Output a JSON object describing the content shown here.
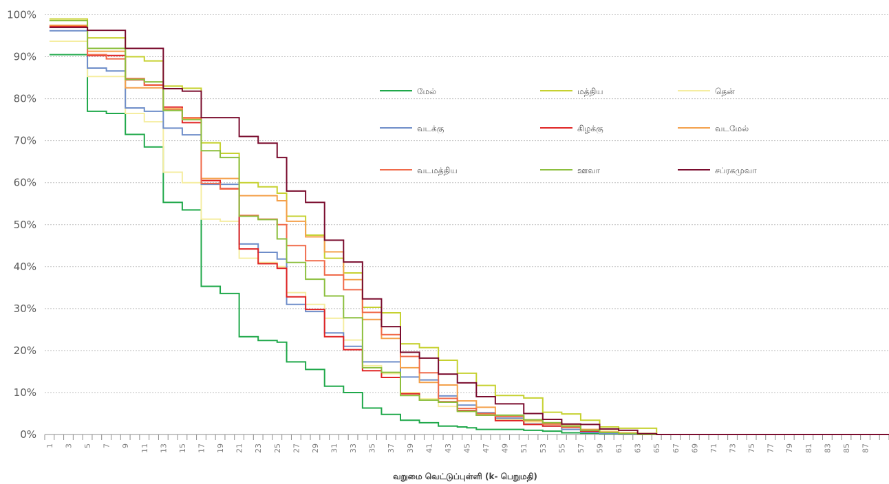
{
  "chart_data": {
    "type": "line",
    "step": true,
    "xlabel": "வறுமை வெட்டுப்புள்ளி (k- பெறுமதி)",
    "ylabel": "",
    "ylim": [
      0,
      100
    ],
    "yticks": [
      "0%",
      "10%",
      "20%",
      "30%",
      "40%",
      "50%",
      "60%",
      "70%",
      "80%",
      "90%",
      "100%"
    ],
    "grid": true,
    "legend": "upper-right",
    "x": [
      1,
      2,
      3,
      4,
      5,
      6,
      7,
      8,
      9,
      10,
      11,
      12,
      13,
      14,
      15,
      16,
      17,
      18,
      19,
      20,
      21,
      22,
      23,
      24,
      25,
      26,
      27,
      28,
      29,
      30,
      31,
      32,
      33,
      34,
      35,
      36,
      37,
      38,
      39,
      40,
      41,
      42,
      43,
      44,
      45,
      46,
      47,
      48,
      49,
      50,
      51,
      52,
      53,
      54,
      55,
      56,
      57,
      58,
      59,
      60,
      61,
      62,
      63,
      64,
      65,
      66,
      67,
      68,
      69,
      70,
      71,
      72,
      73,
      74,
      75,
      76,
      77,
      78,
      79,
      80,
      81,
      82,
      83,
      84,
      85,
      86,
      87,
      88,
      89
    ],
    "xtick_labels": [
      "1",
      "3",
      "5",
      "7",
      "9",
      "11",
      "13",
      "15",
      "17",
      "19",
      "21",
      "23",
      "25",
      "27",
      "29",
      "31",
      "33",
      "35",
      "37",
      "39",
      "41",
      "43",
      "45",
      "47",
      "49",
      "51",
      "53",
      "55",
      "57",
      "59",
      "61",
      "63",
      "65",
      "67",
      "69",
      "71",
      "73",
      "75",
      "77",
      "79",
      "81",
      "83",
      "85",
      "87"
    ],
    "series": [
      {
        "name": "மேல்",
        "color": "#1fa84a",
        "values": [
          90.5,
          90.5,
          90.5,
          90.5,
          77,
          77,
          76.5,
          76.5,
          71.5,
          71.5,
          68.5,
          68.5,
          55.3,
          55.3,
          53.5,
          53.5,
          35.3,
          35.3,
          33.6,
          33.6,
          23.3,
          23.3,
          22.4,
          22.4,
          22,
          17.3,
          17.3,
          15.5,
          15.5,
          11.5,
          11.5,
          10,
          10,
          6.3,
          6.3,
          4.8,
          4.8,
          3.4,
          3.4,
          2.8,
          2.8,
          2,
          2,
          1.8,
          1.6,
          1.2,
          1.2,
          1.2,
          1.2,
          1.2,
          1,
          1,
          0.8,
          0.8,
          0.4,
          0.4,
          0.3,
          0.3,
          0.2,
          0.2,
          0.1,
          0.1,
          0,
          0,
          0,
          0,
          0,
          0,
          0,
          0,
          0,
          0,
          0,
          0,
          0,
          0,
          0,
          0,
          0,
          0,
          0,
          0,
          0,
          0,
          0,
          0,
          0,
          0,
          0
        ]
      },
      {
        "name": "மத்திய",
        "color": "#c6d130",
        "values": [
          99,
          99,
          99,
          99,
          94.5,
          94.5,
          94.5,
          94.5,
          90,
          90,
          89,
          89,
          83,
          83,
          82.5,
          82.5,
          69.5,
          69.5,
          67,
          67,
          60,
          60,
          59,
          59,
          57.5,
          52,
          52,
          47.5,
          47.5,
          42,
          42,
          38.5,
          38.5,
          30.3,
          30.3,
          29,
          29,
          21.6,
          21.6,
          20.7,
          20.7,
          17.7,
          17.7,
          14.6,
          14.6,
          11.7,
          11.7,
          9.3,
          9.3,
          9.3,
          8.7,
          8.7,
          5.3,
          5.3,
          4.9,
          4.9,
          3.4,
          3.4,
          1.8,
          1.8,
          1.5,
          1.5,
          1.5,
          1.5,
          0,
          0,
          0,
          0,
          0,
          0,
          0,
          0,
          0,
          0,
          0,
          0,
          0,
          0,
          0,
          0,
          0,
          0,
          0,
          0,
          0,
          0,
          0,
          0,
          0
        ]
      },
      {
        "name": "தென்",
        "color": "#f5eda0",
        "values": [
          93.7,
          93.7,
          93.7,
          93.7,
          85.3,
          85.3,
          85.3,
          85.3,
          76.5,
          76.5,
          74.5,
          74.5,
          62.5,
          62.5,
          60,
          60,
          51.3,
          51.3,
          50.8,
          50.8,
          42,
          42,
          41,
          41,
          40,
          33.8,
          33.8,
          31,
          31,
          27.7,
          27.7,
          22.5,
          22.5,
          16.4,
          16.4,
          14.5,
          14.5,
          10,
          10,
          8.5,
          8.5,
          6.7,
          6.7,
          5.5,
          5.5,
          4.7,
          4.7,
          3.6,
          3.6,
          3.6,
          3,
          3,
          2.4,
          2.4,
          1.9,
          1.9,
          1.2,
          1.2,
          0.8,
          0.8,
          0.5,
          0.5,
          0.3,
          0.3,
          0,
          0,
          0,
          0,
          0,
          0,
          0,
          0,
          0,
          0,
          0,
          0,
          0,
          0,
          0,
          0,
          0,
          0,
          0,
          0,
          0,
          0,
          0,
          0,
          0
        ]
      },
      {
        "name": "வடக்கு",
        "color": "#6e8dc9",
        "values": [
          96.2,
          96.2,
          96.2,
          96.2,
          87.3,
          87.3,
          86.6,
          86.6,
          77.8,
          77.8,
          77,
          77,
          73,
          73,
          71.4,
          71.4,
          59.6,
          59.6,
          59.6,
          59.6,
          45.4,
          45.4,
          43.4,
          43.4,
          41.8,
          31,
          31,
          29.3,
          29.3,
          24.2,
          24.2,
          21,
          21,
          17.3,
          17.3,
          17.3,
          17.3,
          13.7,
          13.7,
          13,
          13,
          9.2,
          9.2,
          7,
          7,
          5.2,
          5.2,
          3.9,
          3.9,
          3.9,
          2.5,
          2.5,
          2,
          2,
          1.2,
          1.2,
          0.5,
          0.5,
          0.3,
          0.3,
          0,
          0,
          0,
          0,
          0,
          0,
          0,
          0,
          0,
          0,
          0,
          0,
          0,
          0,
          0,
          0,
          0,
          0,
          0,
          0,
          0,
          0,
          0,
          0,
          0,
          0,
          0,
          0,
          0
        ]
      },
      {
        "name": "கிழக்கு",
        "color": "#e02424",
        "values": [
          97.3,
          97.3,
          97.3,
          97.3,
          90.3,
          90.3,
          90.3,
          90.3,
          84.5,
          84.5,
          83.3,
          83.3,
          78,
          78,
          74.3,
          74.3,
          60.5,
          60.5,
          58.6,
          58.6,
          44.2,
          44.2,
          40.7,
          40.7,
          39.6,
          32.8,
          32.8,
          29.8,
          29.8,
          23.3,
          23.3,
          20.2,
          20.2,
          15.2,
          15.2,
          13.6,
          13.6,
          9.7,
          9.7,
          8.2,
          8.2,
          7.8,
          7.8,
          5.7,
          5.7,
          4.6,
          4.6,
          3.3,
          3.3,
          3.3,
          2.4,
          2.4,
          2,
          2,
          1.7,
          1.7,
          0.8,
          0.8,
          0.5,
          0.5,
          0.2,
          0.2,
          0,
          0,
          0,
          0,
          0,
          0,
          0,
          0,
          0,
          0,
          0,
          0,
          0,
          0,
          0,
          0,
          0,
          0,
          0,
          0,
          0,
          0,
          0,
          0,
          0,
          0,
          0
        ]
      },
      {
        "name": "வடமேல்",
        "color": "#f4a04a",
        "values": [
          97.5,
          97.5,
          97.5,
          97.5,
          91.3,
          91.3,
          91.3,
          91.3,
          82.6,
          82.6,
          82.6,
          82.6,
          77.6,
          77.6,
          75.3,
          75.3,
          61,
          61,
          61,
          61,
          56.9,
          56.9,
          56.9,
          56.9,
          55.7,
          50.8,
          50.8,
          47.1,
          47.1,
          43.5,
          43.5,
          36.9,
          36.9,
          27.4,
          27.4,
          22.9,
          22.9,
          15.9,
          15.9,
          12.4,
          12.4,
          11.8,
          11.8,
          8,
          8,
          6.5,
          6.5,
          4.5,
          4.5,
          4.5,
          3.3,
          3.3,
          2.8,
          2.8,
          2.4,
          2.4,
          1.2,
          1.2,
          0.6,
          0.6,
          0.3,
          0.3,
          0,
          0,
          0,
          0,
          0,
          0,
          0,
          0,
          0,
          0,
          0,
          0,
          0,
          0,
          0,
          0,
          0,
          0,
          0,
          0,
          0,
          0,
          0,
          0,
          0,
          0,
          0
        ]
      },
      {
        "name": "வடமத்திய",
        "color": "#f06a4a",
        "values": [
          97,
          97,
          97,
          97,
          90.5,
          90.5,
          89.5,
          89.5,
          84.8,
          84.8,
          83.2,
          83.2,
          77.3,
          77.3,
          75.5,
          75.5,
          59.8,
          59.8,
          58.5,
          58.5,
          52.2,
          52.2,
          51.3,
          51.3,
          50,
          45,
          45,
          41.4,
          41.4,
          38,
          38,
          34.5,
          34.5,
          29.1,
          29.1,
          23.8,
          23.8,
          18.6,
          18.6,
          14.7,
          14.7,
          8.6,
          8.6,
          6.2,
          6.2,
          5,
          5,
          4.3,
          4.3,
          4.3,
          3.5,
          3.5,
          2.5,
          2.5,
          1.8,
          1.8,
          1,
          1,
          0.5,
          0.5,
          0.2,
          0.2,
          0,
          0,
          0,
          0,
          0,
          0,
          0,
          0,
          0,
          0,
          0,
          0,
          0,
          0,
          0,
          0,
          0,
          0,
          0,
          0,
          0,
          0,
          0,
          0,
          0,
          0,
          0
        ]
      },
      {
        "name": "ஊவா",
        "color": "#8cbf3e",
        "values": [
          98.6,
          98.6,
          98.6,
          98.6,
          92,
          92,
          92,
          92,
          84.6,
          84.6,
          84,
          84,
          77.2,
          77.2,
          75,
          75,
          67.6,
          67.6,
          66,
          66,
          52,
          52,
          51.2,
          51.2,
          46.6,
          41,
          41,
          37,
          37,
          33,
          33,
          27.8,
          27.8,
          15.9,
          15.9,
          14.8,
          14.8,
          9.3,
          9.3,
          8.2,
          8.2,
          7.7,
          7.7,
          5.5,
          5.5,
          4.6,
          4.6,
          4.6,
          4.6,
          4.6,
          3.5,
          3.5,
          2.8,
          2.8,
          2,
          2,
          1,
          1,
          0.5,
          0.5,
          0.2,
          0.2,
          0,
          0,
          0,
          0,
          0,
          0,
          0,
          0,
          0,
          0,
          0,
          0,
          0,
          0,
          0,
          0,
          0,
          0,
          0,
          0,
          0,
          0,
          0,
          0,
          0,
          0,
          0
        ]
      },
      {
        "name": "சப்ரகமுவா",
        "color": "#7a0c2e",
        "values": [
          97,
          97,
          97,
          97,
          96.3,
          96.3,
          96.3,
          96.3,
          92,
          92,
          92,
          92,
          82.4,
          82.4,
          81.8,
          81.8,
          75.5,
          75.5,
          75.5,
          75.5,
          71,
          71,
          69.4,
          69.4,
          66,
          58,
          58,
          55.3,
          55.3,
          46.3,
          46.3,
          41.1,
          41.1,
          32.3,
          32.3,
          25.7,
          25.7,
          19.6,
          19.6,
          18.2,
          18.2,
          14.4,
          14.4,
          12.3,
          12.3,
          9,
          9,
          7.3,
          7.3,
          7.3,
          5,
          5,
          3.6,
          3.6,
          2.5,
          2.5,
          2.4,
          2.4,
          1.3,
          1.3,
          1,
          1,
          0.2,
          0.2,
          0,
          0,
          0,
          0,
          0,
          0,
          0,
          0,
          0,
          0,
          0,
          0,
          0,
          0,
          0,
          0,
          0,
          0,
          0,
          0,
          0,
          0,
          0,
          0,
          0
        ]
      }
    ]
  }
}
